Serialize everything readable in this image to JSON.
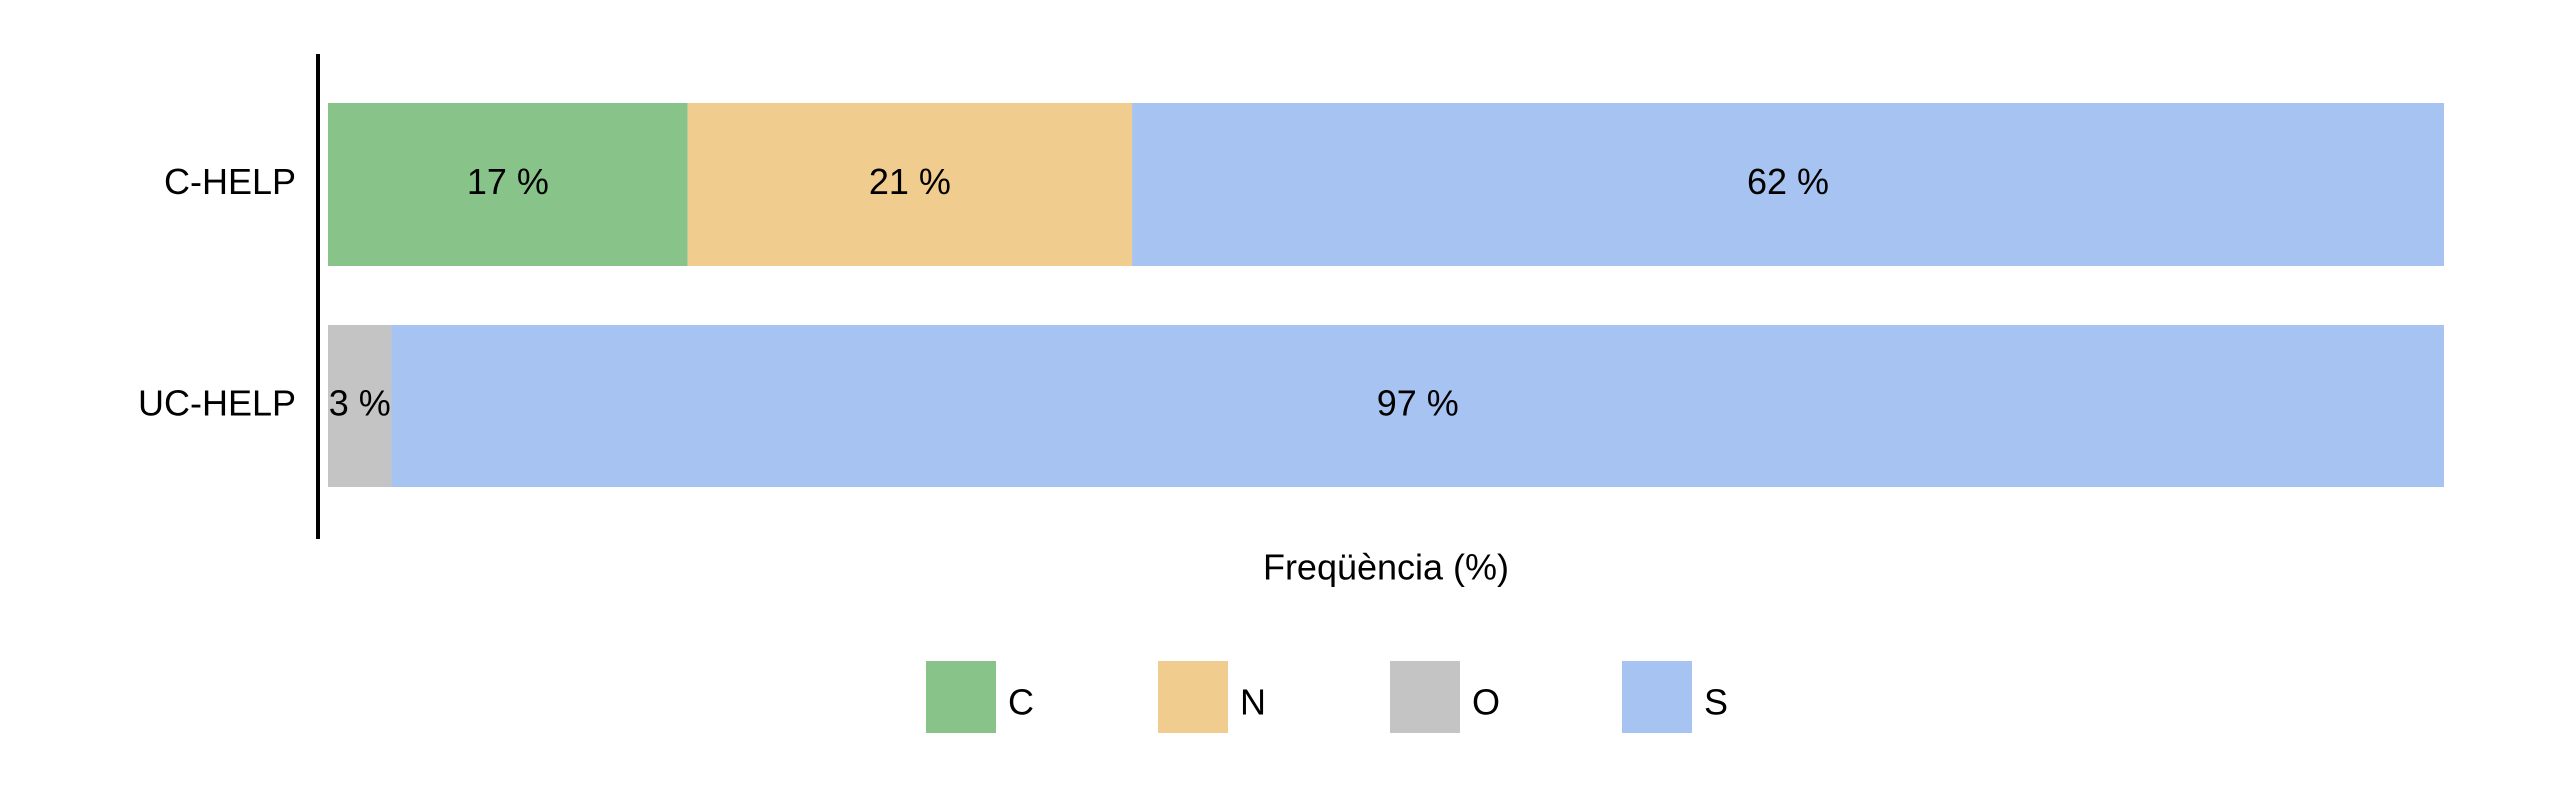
{
  "chart_data": {
    "type": "stacked-barh",
    "categories": [
      "C-HELP",
      "UC-HELP"
    ],
    "series": [
      {
        "name": "C",
        "color": "#88c48a",
        "values": [
          17,
          null
        ],
        "value_labels": [
          "17 %",
          null
        ]
      },
      {
        "name": "N",
        "color": "#f0cd8e",
        "values": [
          21,
          null
        ],
        "value_labels": [
          "21 %",
          null
        ]
      },
      {
        "name": "O",
        "color": "#c4c4c4",
        "values": [
          null,
          3
        ],
        "value_labels": [
          null,
          "3 %"
        ]
      },
      {
        "name": "S",
        "color": "#a6c3f1",
        "values": [
          62,
          97
        ],
        "value_labels": [
          "62 %",
          "97 %"
        ]
      }
    ],
    "xlim": [
      0,
      100
    ],
    "xlabel": "Freqüència (%)",
    "legend": "bottom"
  }
}
